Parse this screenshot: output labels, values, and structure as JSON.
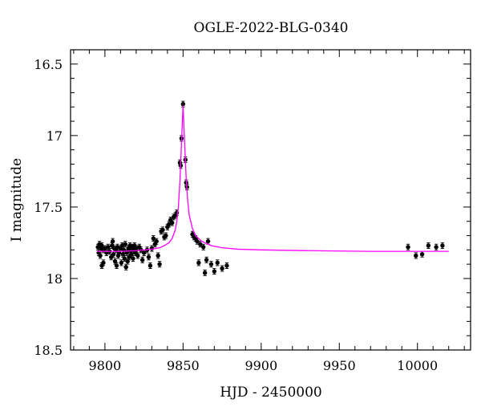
{
  "chart_data": {
    "type": "scatter",
    "title": "OGLE-2022-BLG-0340",
    "xlabel": "HJD - 2450000",
    "ylabel": "I magnitude",
    "xlim": [
      9778,
      10034
    ],
    "ylim": [
      18.5,
      16.4
    ],
    "y_inverted": true,
    "grid": false,
    "x_ticks": [
      9800,
      9850,
      9900,
      9950,
      10000
    ],
    "x_tick_labels": [
      "9800",
      "9850",
      "9900",
      "9950",
      "10000"
    ],
    "y_ticks": [
      16.5,
      17,
      17.5,
      18,
      18.5
    ],
    "y_tick_labels": [
      "16.5",
      "17",
      "17.5",
      "18",
      "18.5"
    ],
    "model": {
      "name": "",
      "color": "#ff00ff",
      "points": [
        [
          9795,
          17.81
        ],
        [
          9810,
          17.81
        ],
        [
          9820,
          17.805
        ],
        [
          9830,
          17.795
        ],
        [
          9835,
          17.785
        ],
        [
          9838,
          17.77
        ],
        [
          9841,
          17.75
        ],
        [
          9843,
          17.72
        ],
        [
          9845,
          17.66
        ],
        [
          9846,
          17.6
        ],
        [
          9847,
          17.5
        ],
        [
          9848,
          17.32
        ],
        [
          9849,
          17.05
        ],
        [
          9849.5,
          16.92
        ],
        [
          9850,
          16.79
        ],
        [
          9850.5,
          16.92
        ],
        [
          9851,
          17.05
        ],
        [
          9852,
          17.3
        ],
        [
          9853,
          17.46
        ],
        [
          9854,
          17.56
        ],
        [
          9856,
          17.65
        ],
        [
          9858,
          17.7
        ],
        [
          9862,
          17.74
        ],
        [
          9868,
          17.77
        ],
        [
          9875,
          17.785
        ],
        [
          9885,
          17.795
        ],
        [
          9900,
          17.8
        ],
        [
          9930,
          17.805
        ],
        [
          9970,
          17.81
        ],
        [
          10020,
          17.81
        ]
      ]
    },
    "series": [
      {
        "name": "",
        "color": "#000000",
        "points": [
          [
            9795.5,
            17.78,
            0.02
          ],
          [
            9796,
            17.82,
            0.02
          ],
          [
            9796.5,
            17.76,
            0.02
          ],
          [
            9797,
            17.84,
            0.02
          ],
          [
            9797.5,
            17.79,
            0.02
          ],
          [
            9798,
            17.77,
            0.02
          ],
          [
            9798,
            17.91,
            0.02
          ],
          [
            9799,
            17.8,
            0.02
          ],
          [
            9799,
            17.89,
            0.02
          ],
          [
            9800,
            17.79,
            0.02
          ],
          [
            9801,
            17.82,
            0.02
          ],
          [
            9802,
            17.78,
            0.02
          ],
          [
            9803,
            17.81,
            0.02
          ],
          [
            9804,
            17.85,
            0.02
          ],
          [
            9804.5,
            17.77,
            0.02
          ],
          [
            9805,
            17.74,
            0.02
          ],
          [
            9805.5,
            17.83,
            0.02
          ],
          [
            9806,
            17.79,
            0.02
          ],
          [
            9806.5,
            17.88,
            0.02
          ],
          [
            9807,
            17.8,
            0.02
          ],
          [
            9807.5,
            17.91,
            0.02
          ],
          [
            9808,
            17.78,
            0.02
          ],
          [
            9808.5,
            17.84,
            0.02
          ],
          [
            9809,
            17.82,
            0.02
          ],
          [
            9810,
            17.79,
            0.02
          ],
          [
            9810.5,
            17.89,
            0.02
          ],
          [
            9811,
            17.77,
            0.02
          ],
          [
            9811.5,
            17.83,
            0.02
          ],
          [
            9812,
            17.8,
            0.02
          ],
          [
            9812.5,
            17.86,
            0.02
          ],
          [
            9813,
            17.76,
            0.02
          ],
          [
            9813.5,
            17.92,
            0.02
          ],
          [
            9814,
            17.82,
            0.02
          ],
          [
            9814.5,
            17.88,
            0.02
          ],
          [
            9815,
            17.79,
            0.02
          ],
          [
            9815.5,
            17.85,
            0.02
          ],
          [
            9816,
            17.77,
            0.02
          ],
          [
            9816.5,
            17.81,
            0.02
          ],
          [
            9817,
            17.83,
            0.02
          ],
          [
            9817.5,
            17.78,
            0.02
          ],
          [
            9818,
            17.86,
            0.02
          ],
          [
            9818.5,
            17.8,
            0.02
          ],
          [
            9819,
            17.77,
            0.02
          ],
          [
            9819.5,
            17.82,
            0.02
          ],
          [
            9820,
            17.79,
            0.02
          ],
          [
            9821,
            17.84,
            0.02
          ],
          [
            9822,
            17.78,
            0.02
          ],
          [
            9823,
            17.8,
            0.02
          ],
          [
            9824,
            17.87,
            0.02
          ],
          [
            9825,
            17.82,
            0.02
          ],
          [
            9827,
            17.8,
            0.02
          ],
          [
            9828,
            17.85,
            0.02
          ],
          [
            9829,
            17.91,
            0.02
          ],
          [
            9830,
            17.79,
            0.02
          ],
          [
            9831,
            17.72,
            0.02
          ],
          [
            9832,
            17.76,
            0.02
          ],
          [
            9833,
            17.74,
            0.02
          ],
          [
            9834,
            17.84,
            0.02
          ],
          [
            9835,
            17.9,
            0.02
          ],
          [
            9836,
            17.67,
            0.02
          ],
          [
            9837,
            17.66,
            0.02
          ],
          [
            9838,
            17.71,
            0.02
          ],
          [
            9839,
            17.7,
            0.02
          ],
          [
            9840,
            17.64,
            0.02
          ],
          [
            9841,
            17.62,
            0.02
          ],
          [
            9842,
            17.59,
            0.02
          ],
          [
            9843,
            17.61,
            0.02
          ],
          [
            9844,
            17.57,
            0.02
          ],
          [
            9845,
            17.56,
            0.02
          ],
          [
            9846,
            17.54,
            0.02
          ],
          [
            9848,
            17.19,
            0.02
          ],
          [
            9848.5,
            17.21,
            0.02
          ],
          [
            9849,
            17.02,
            0.02
          ],
          [
            9850,
            16.78,
            0.02
          ],
          [
            9851.5,
            17.17,
            0.02
          ],
          [
            9852,
            17.33,
            0.02
          ],
          [
            9852.5,
            17.36,
            0.02
          ],
          [
            9856,
            17.69,
            0.02
          ],
          [
            9857,
            17.71,
            0.02
          ],
          [
            9858,
            17.72,
            0.02
          ],
          [
            9859,
            17.74,
            0.02
          ],
          [
            9860,
            17.89,
            0.02
          ],
          [
            9861,
            17.76,
            0.02
          ],
          [
            9863,
            17.78,
            0.02
          ],
          [
            9864,
            17.96,
            0.02
          ],
          [
            9865,
            17.87,
            0.02
          ],
          [
            9866,
            17.74,
            0.02
          ],
          [
            9868,
            17.9,
            0.02
          ],
          [
            9870,
            17.95,
            0.02
          ],
          [
            9872,
            17.89,
            0.02
          ],
          [
            9875,
            17.93,
            0.02
          ],
          [
            9878,
            17.91,
            0.02
          ],
          [
            9994,
            17.78,
            0.02
          ],
          [
            9999,
            17.84,
            0.02
          ],
          [
            10003,
            17.83,
            0.02
          ],
          [
            10007,
            17.77,
            0.02
          ],
          [
            10012,
            17.78,
            0.02
          ],
          [
            10016,
            17.77,
            0.02
          ]
        ]
      }
    ]
  }
}
